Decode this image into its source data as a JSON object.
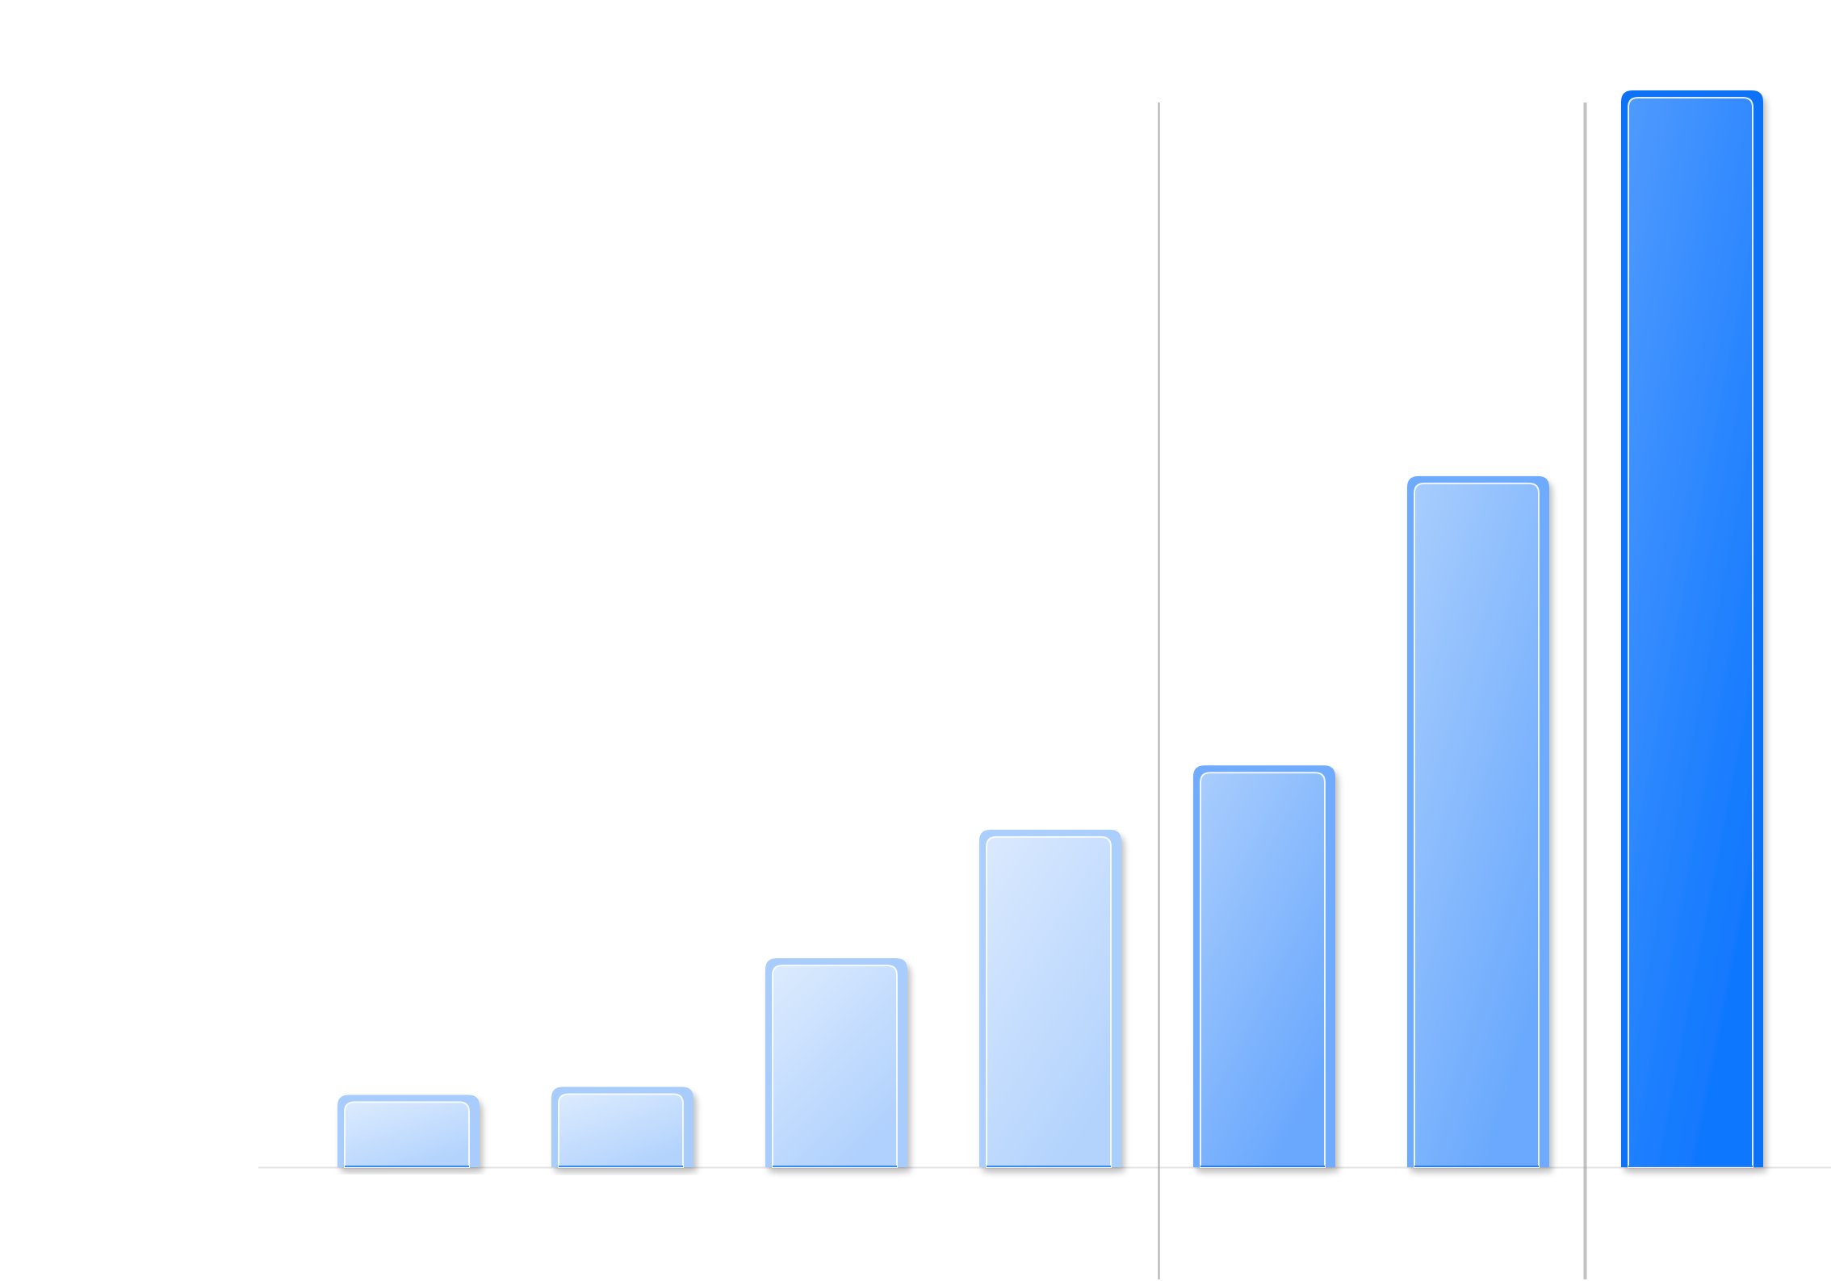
{
  "chart_data": {
    "type": "bar",
    "categories": [
      "",
      "",
      "",
      "",
      "",
      "",
      ""
    ],
    "values": [
      9,
      10,
      26,
      42,
      50,
      86,
      134
    ],
    "ylim": [
      0,
      134
    ],
    "grid": false,
    "legend": "none",
    "reference_lines_after_category_index": [
      3,
      5
    ],
    "colors": {
      "light": "#d8e7fd",
      "mid": "#a4c9fd",
      "strong": "#6aa9fd",
      "deep": "#0f77fe",
      "baseline": "#e3e3e3",
      "reference_line": "#9a9a9a"
    }
  }
}
